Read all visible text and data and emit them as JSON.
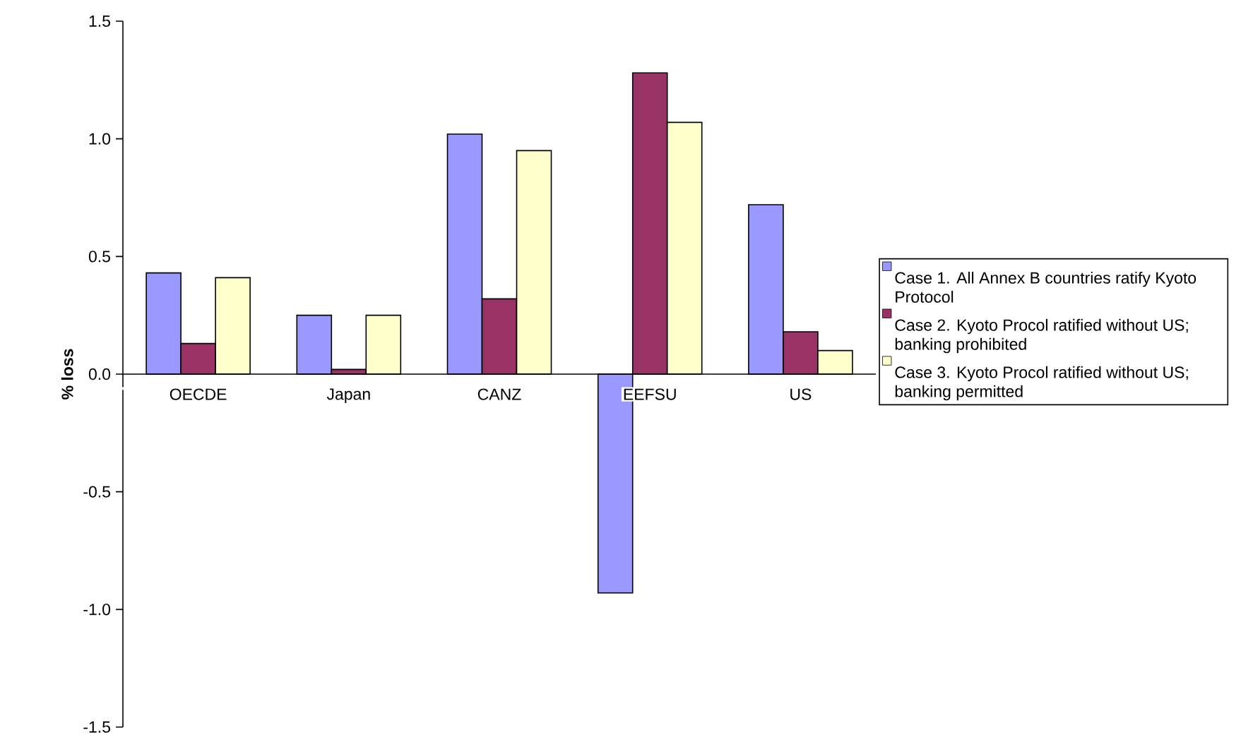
{
  "chart_data": {
    "type": "bar",
    "ylabel": "% loss",
    "categories": [
      "OECDE",
      "Japan",
      "CANZ",
      "EEFSU",
      "US"
    ],
    "series": [
      {
        "name": "Case 1. All Annex B countries ratify Kyoto Protocol",
        "color": "#9999ff",
        "values": [
          0.43,
          0.25,
          1.02,
          -0.93,
          0.72
        ]
      },
      {
        "name": "Case 2. Kyoto Procol ratified without US; banking prohibited",
        "color": "#993366",
        "values": [
          0.13,
          0.02,
          0.32,
          1.28,
          0.18
        ]
      },
      {
        "name": "Case 3. Kyoto Procol ratified without US; banking permitted",
        "color": "#ffffcc",
        "values": [
          0.41,
          0.25,
          0.95,
          1.07,
          0.1
        ]
      }
    ],
    "ylim": [
      -1.5,
      1.5
    ],
    "yticks": [
      {
        "value": -1.5,
        "label": "-1.5"
      },
      {
        "value": -1.0,
        "label": "-1.0"
      },
      {
        "value": -0.5,
        "label": "-0.5"
      },
      {
        "value": 0,
        "label": "0.0"
      },
      {
        "value": 0.5,
        "label": "0.5"
      },
      {
        "value": 1.0,
        "label": "1.0"
      },
      {
        "value": 1.5,
        "label": "1.5"
      }
    ],
    "grid": false,
    "legend": "right"
  }
}
